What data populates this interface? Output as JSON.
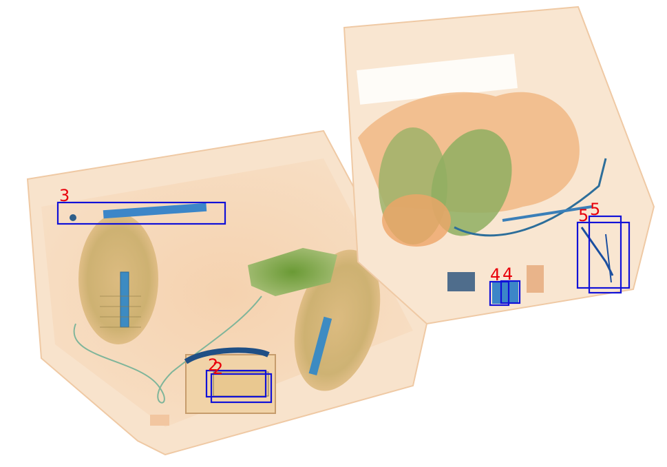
{
  "image": {
    "kind": "x-ray baggage scan",
    "colors": {
      "organic": "#e9a46a",
      "mixed": "#6aa13a",
      "metal": "#2f78c2",
      "box": "#1010d8",
      "label": "#e8000b"
    }
  },
  "detections": [
    {
      "label": "3"
    },
    {
      "label": "2"
    },
    {
      "label": "2"
    },
    {
      "label": "4"
    },
    {
      "label": "4"
    },
    {
      "label": "5"
    },
    {
      "label": "5"
    }
  ]
}
